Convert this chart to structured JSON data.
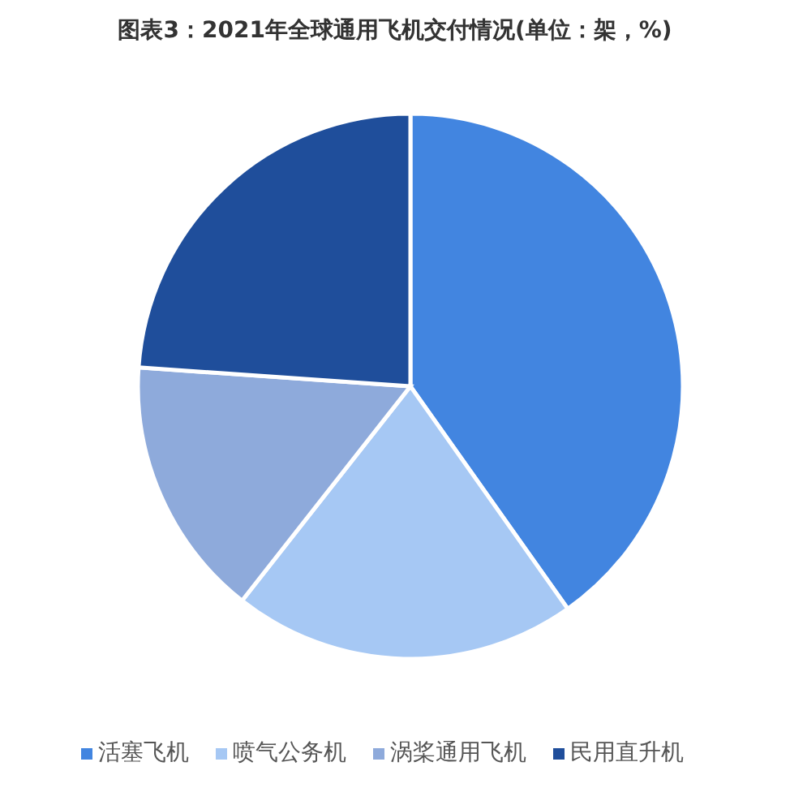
{
  "chart_data": {
    "type": "pie",
    "title": "图表3：2021年全球通用飞机交付情况(单位：架，%)",
    "categories": [
      "活塞飞机",
      "喷气公务机",
      "涡桨通用飞机",
      "民用直升机"
    ],
    "values": [
      40.2,
      20.4,
      15.5,
      23.9
    ],
    "colors": [
      "#4285e0",
      "#a6c8f4",
      "#8eaadb",
      "#1f4e9b"
    ],
    "legend": "bottom"
  }
}
